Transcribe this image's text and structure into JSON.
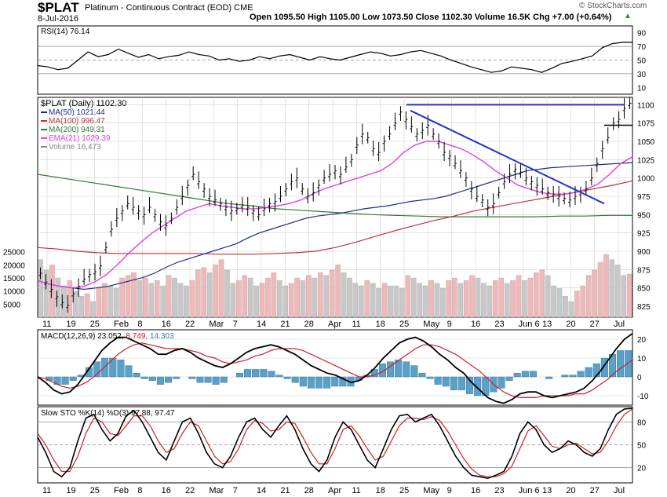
{
  "header": {
    "symbol": "$PLAT",
    "name": "Platinum - Continuous Contract (EOD)",
    "exchange": "CME",
    "date": "8-Jul-2016",
    "quote": "Open 1095.50   High 1105.00   Low 1073.50   Close 1102.30   Volume 16.5K   Chg +7.00 (+0.64%)",
    "up_arrow": "▲",
    "watermark": "© StockCharts.com"
  },
  "colors": {
    "price": "#000000",
    "ma50": "#1f2a8c",
    "ma100": "#c0303a",
    "ma200": "#2f7a2f",
    "ema21": "#e040e0",
    "vol_up": "#c8c8c8",
    "vol_down": "#f0b8b8",
    "trend": "#2233cc",
    "macd_hist": "#5aa0c8",
    "grid": "#d0d0d0",
    "up": "#2a9a2a"
  },
  "chart_data": [
    {
      "type": "line",
      "title": "RSI(14) 76.14",
      "y_ticks": [
        10,
        30,
        50,
        70,
        90
      ],
      "ylim": [
        0,
        100
      ],
      "reference_lines": [
        30,
        50,
        70
      ],
      "series": [
        {
          "name": "RSI(14)",
          "values": [
            42,
            40,
            36,
            38,
            50,
            62,
            55,
            58,
            66,
            60,
            54,
            58,
            52,
            55,
            57,
            62,
            58,
            56,
            50,
            52,
            48,
            50,
            55,
            52,
            56,
            58,
            54,
            50,
            55,
            52,
            50,
            54,
            58,
            62,
            60,
            56,
            58,
            62,
            64,
            60,
            56,
            50,
            45,
            40,
            36,
            32,
            34,
            40,
            38,
            36,
            32,
            38,
            45,
            48,
            52,
            56,
            68,
            74,
            76,
            76
          ]
        }
      ]
    },
    {
      "type": "line",
      "title": "$PLAT (Daily) 1102.30",
      "y_ticks": [
        825,
        850,
        875,
        900,
        925,
        950,
        975,
        1000,
        1025,
        1050,
        1075,
        1100
      ],
      "ylim": [
        810,
        1110
      ],
      "x_tick_labels": [
        "11",
        "19",
        "25",
        "Feb",
        "8",
        "16",
        "22",
        "Mar",
        "7",
        "14",
        "21",
        "28",
        "Apr",
        "11",
        "18",
        "25",
        "May",
        "9",
        "16",
        "23",
        "Jun 6",
        "13",
        "20",
        "27",
        "Jul"
      ],
      "legend": [
        "$PLAT (Daily) 1102.30",
        "MA(50) 1021.44",
        "MA(100) 996.47",
        "MA(200) 949.31",
        "EMA(21) 1029.39",
        "Volume 16,473"
      ],
      "series": [
        {
          "name": "$PLAT (Daily)",
          "values": [
            870,
            858,
            848,
            838,
            830,
            826,
            842,
            852,
            862,
            868,
            872,
            880,
            905,
            930,
            945,
            955,
            965,
            960,
            955,
            950,
            960,
            950,
            940,
            935,
            945,
            960,
            975,
            990,
            1005,
            995,
            985,
            975,
            970,
            965,
            960,
            955,
            958,
            963,
            960,
            955,
            950,
            958,
            965,
            968,
            975,
            985,
            995,
            1000,
            985,
            975,
            980,
            990,
            1000,
            1005,
            1010,
            1005,
            1015,
            1025,
            1045,
            1060,
            1055,
            1040,
            1035,
            1050,
            1060,
            1075,
            1090,
            1080,
            1070,
            1060,
            1065,
            1072,
            1060,
            1050,
            1035,
            1030,
            1020,
            1010,
            1000,
            985,
            975,
            970,
            960,
            965,
            980,
            995,
            1005,
            1012,
            1008,
            1000,
            995,
            990,
            985,
            980,
            978,
            975,
            972,
            970,
            975,
            980,
            985,
            1000,
            1020,
            1040,
            1055,
            1075,
            1080,
            1095,
            1102
          ]
        },
        {
          "name": "MA(50) 1021.44",
          "values": [
            860,
            855,
            852,
            850,
            848,
            850,
            852,
            856,
            860,
            864,
            870,
            878,
            885,
            890,
            895,
            900,
            905,
            910,
            918,
            925,
            930,
            935,
            940,
            945,
            948,
            950,
            952,
            955,
            958,
            960,
            962,
            965,
            968,
            970,
            972,
            975,
            980,
            985,
            990,
            995,
            1000,
            1005,
            1010,
            1012,
            1014,
            1015,
            1016,
            1017,
            1018,
            1019,
            1020,
            1021
          ]
        },
        {
          "name": "MA(100) 996.47",
          "values": [
            905,
            903,
            900,
            898,
            897,
            897,
            897,
            897,
            897,
            896,
            896,
            896,
            897,
            898,
            900,
            905,
            912,
            920,
            928,
            935,
            942,
            948,
            955,
            960,
            965,
            970,
            975,
            980,
            985,
            990,
            996
          ]
        },
        {
          "name": "MA(200) 949.31",
          "values": [
            1005,
            1000,
            995,
            990,
            985,
            980,
            975,
            970,
            965,
            962,
            958,
            956,
            954,
            952,
            950,
            949,
            948,
            947,
            947,
            947,
            947,
            947,
            948,
            948,
            949,
            949
          ]
        },
        {
          "name": "EMA(21) 1029.39",
          "values": [
            860,
            855,
            852,
            850,
            852,
            858,
            868,
            882,
            898,
            912,
            925,
            935,
            945,
            955,
            960,
            965,
            962,
            960,
            958,
            958,
            960,
            962,
            965,
            970,
            978,
            985,
            990,
            995,
            1000,
            1005,
            1010,
            1020,
            1035,
            1045,
            1050,
            1050,
            1045,
            1040,
            1032,
            1022,
            1010,
            1000,
            990,
            985,
            980,
            978,
            978,
            980,
            985,
            992,
            1005,
            1020,
            1029
          ]
        },
        {
          "name": "Volume 16,473",
          "values": [
            22000,
            18000,
            20000,
            15000,
            12000,
            14000,
            10000,
            8000,
            9000,
            6000,
            11000,
            13000,
            12000,
            11000,
            15000,
            16000,
            17000,
            14000,
            15000,
            13000,
            14000,
            12000,
            16000,
            15000,
            13000,
            12000,
            14000,
            18000,
            19000,
            17000,
            20000,
            22000,
            18000,
            13000,
            14000,
            16000,
            15000,
            12000,
            13000,
            15000,
            17000,
            14000,
            12000,
            13000,
            15000,
            14000,
            16000,
            15000,
            17000,
            16000,
            18000,
            20000,
            17000,
            15000,
            13000,
            12000,
            14000,
            13000,
            11000,
            13000,
            12000,
            12000,
            11000,
            16000,
            15000,
            13000,
            12000,
            14000,
            13000,
            11000,
            14000,
            15000,
            13000,
            14000,
            16000,
            15000,
            13000,
            12000,
            14000,
            15000,
            13000,
            14000,
            16000,
            14000,
            15000,
            17000,
            18000,
            16000,
            12000,
            11000,
            8000,
            6000,
            10000,
            12000,
            16000,
            18000,
            21000,
            24000,
            22000,
            20000,
            16000,
            16500
          ]
        }
      ],
      "volume_y_ticks": [
        5000,
        10000,
        15000,
        20000,
        25000
      ],
      "trendlines": [
        "resistance ~1100 from May high",
        "downtrend from May high to late June"
      ]
    },
    {
      "type": "line",
      "title": "MACD(12,26,9) 23.052, 8.749, 14.303",
      "title_parts": [
        "MACD(12,26,9) 23.052,",
        "8.749,",
        "14.303"
      ],
      "y_ticks": [
        -10,
        0,
        10,
        20
      ],
      "ylim": [
        -15,
        25
      ],
      "series": [
        {
          "name": "MACD",
          "values": [
            0,
            -3,
            -7,
            -9,
            -8,
            -4,
            2,
            8,
            14,
            18,
            21,
            21,
            19,
            17,
            15,
            12,
            12,
            14,
            15,
            13,
            10,
            8,
            6,
            5,
            7,
            10,
            13,
            15,
            16,
            17,
            16,
            14,
            12,
            9,
            6,
            4,
            2,
            1,
            -1,
            -3,
            -2,
            1,
            5,
            10,
            14,
            18,
            20,
            21,
            19,
            16,
            12,
            9,
            5,
            2,
            -3,
            -7,
            -11,
            -13,
            -14,
            -12,
            -9,
            -8,
            -8,
            -10,
            -11,
            -10,
            -9,
            -8,
            -6,
            -2,
            3,
            9,
            15,
            20,
            23
          ]
        },
        {
          "name": "Signal",
          "values": [
            0,
            -1,
            -3,
            -5,
            -6,
            -5,
            -3,
            0,
            4,
            8,
            12,
            15,
            17,
            18,
            17,
            16,
            15,
            15,
            15,
            14,
            13,
            11,
            10,
            8,
            7,
            8,
            9,
            11,
            12,
            14,
            15,
            15,
            15,
            14,
            12,
            10,
            8,
            6,
            4,
            2,
            0,
            0,
            1,
            3,
            6,
            9,
            12,
            15,
            17,
            17,
            16,
            14,
            12,
            9,
            6,
            3,
            -1,
            -5,
            -8,
            -10,
            -11,
            -11,
            -11,
            -10,
            -10,
            -10,
            -10,
            -9,
            -9,
            -7,
            -4,
            -1,
            3,
            6,
            9
          ]
        },
        {
          "name": "Histogram",
          "values": [
            0,
            -2,
            -4,
            -4,
            -2,
            1,
            5,
            8,
            10,
            10,
            9,
            6,
            2,
            -1,
            -2,
            -4,
            -3,
            -1,
            0,
            -1,
            -3,
            -3,
            -4,
            -3,
            0,
            2,
            4,
            4,
            4,
            3,
            1,
            -1,
            -3,
            -5,
            -6,
            -6,
            -6,
            -5,
            -5,
            -5,
            -2,
            1,
            4,
            7,
            8,
            9,
            8,
            6,
            2,
            -1,
            -4,
            -5,
            -7,
            -7,
            -9,
            -10,
            -10,
            -8,
            -6,
            -2,
            2,
            3,
            3,
            0,
            -1,
            0,
            1,
            1,
            3,
            5,
            7,
            10,
            12,
            14,
            14
          ]
        }
      ]
    },
    {
      "type": "line",
      "title": "Slow STO %K(14) %D(3) 97.88, 97.47",
      "y_ticks": [
        20,
        50,
        80
      ],
      "ylim": [
        0,
        100
      ],
      "reference_lines": [
        20,
        50,
        80
      ],
      "series": [
        {
          "name": "%K(14)",
          "values": [
            60,
            40,
            15,
            8,
            20,
            55,
            85,
            90,
            70,
            55,
            65,
            88,
            95,
            80,
            60,
            40,
            30,
            55,
            80,
            85,
            65,
            40,
            25,
            20,
            35,
            60,
            80,
            85,
            70,
            60,
            75,
            88,
            70,
            45,
            25,
            15,
            30,
            60,
            80,
            70,
            50,
            30,
            20,
            45,
            70,
            88,
            90,
            80,
            85,
            90,
            75,
            55,
            35,
            20,
            10,
            8,
            6,
            10,
            15,
            35,
            65,
            80,
            70,
            50,
            40,
            45,
            55,
            50,
            40,
            35,
            45,
            70,
            90,
            97,
            98
          ]
        },
        {
          "name": "%D(3)",
          "values": [
            65,
            50,
            30,
            15,
            15,
            35,
            65,
            85,
            80,
            65,
            62,
            75,
            88,
            88,
            75,
            55,
            40,
            45,
            65,
            80,
            75,
            55,
            35,
            25,
            28,
            45,
            70,
            82,
            78,
            68,
            70,
            80,
            78,
            60,
            40,
            25,
            25,
            45,
            70,
            75,
            62,
            45,
            30,
            35,
            55,
            75,
            85,
            85,
            83,
            87,
            82,
            68,
            50,
            32,
            18,
            10,
            8,
            8,
            12,
            22,
            45,
            68,
            75,
            62,
            48,
            45,
            50,
            52,
            45,
            38,
            40,
            55,
            75,
            90,
            97
          ]
        }
      ]
    }
  ]
}
